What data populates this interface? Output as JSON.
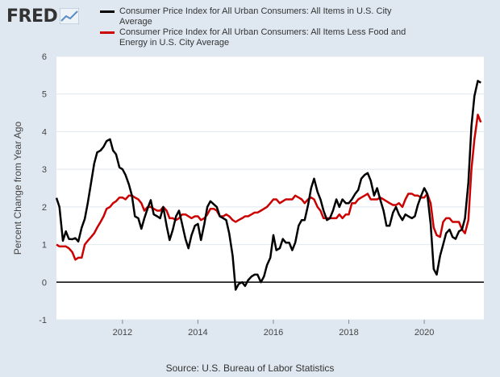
{
  "logo": {
    "text": "FRED"
  },
  "source": "Source: U.S. Bureau of Labor Statistics",
  "chart_data": {
    "type": "line",
    "ylabel": "Percent Change from Year Ago",
    "ylim": [
      -1,
      6
    ],
    "yticks": [
      -1,
      0,
      1,
      2,
      3,
      4,
      5,
      6
    ],
    "xlim": [
      2010.25,
      2021.58
    ],
    "xticks": [
      2012,
      2014,
      2016,
      2018,
      2020
    ],
    "grid": "horizontal",
    "legend_position": "top",
    "zero_line": true,
    "series": [
      {
        "name": "Consumer Price Index for All Urban Consumers: All Items in U.S. City Average",
        "color": "#000000",
        "points": [
          [
            2010.25,
            2.24
          ],
          [
            2010.33,
            2.0
          ],
          [
            2010.42,
            1.1
          ],
          [
            2010.5,
            1.35
          ],
          [
            2010.58,
            1.15
          ],
          [
            2010.67,
            1.14
          ],
          [
            2010.75,
            1.17
          ],
          [
            2010.83,
            1.08
          ],
          [
            2010.92,
            1.45
          ],
          [
            2011.0,
            1.68
          ],
          [
            2011.08,
            2.1
          ],
          [
            2011.17,
            2.65
          ],
          [
            2011.25,
            3.15
          ],
          [
            2011.33,
            3.45
          ],
          [
            2011.42,
            3.5
          ],
          [
            2011.5,
            3.6
          ],
          [
            2011.58,
            3.75
          ],
          [
            2011.67,
            3.8
          ],
          [
            2011.75,
            3.5
          ],
          [
            2011.83,
            3.4
          ],
          [
            2011.92,
            3.05
          ],
          [
            2012.0,
            3.0
          ],
          [
            2012.08,
            2.85
          ],
          [
            2012.17,
            2.6
          ],
          [
            2012.25,
            2.3
          ],
          [
            2012.33,
            1.75
          ],
          [
            2012.42,
            1.7
          ],
          [
            2012.5,
            1.42
          ],
          [
            2012.58,
            1.7
          ],
          [
            2012.67,
            1.97
          ],
          [
            2012.75,
            2.18
          ],
          [
            2012.83,
            1.8
          ],
          [
            2012.92,
            1.75
          ],
          [
            2013.0,
            1.7
          ],
          [
            2013.08,
            2.0
          ],
          [
            2013.17,
            1.5
          ],
          [
            2013.25,
            1.12
          ],
          [
            2013.33,
            1.38
          ],
          [
            2013.42,
            1.75
          ],
          [
            2013.5,
            1.9
          ],
          [
            2013.58,
            1.55
          ],
          [
            2013.67,
            1.15
          ],
          [
            2013.75,
            0.9
          ],
          [
            2013.83,
            1.25
          ],
          [
            2013.92,
            1.5
          ],
          [
            2014.0,
            1.55
          ],
          [
            2014.08,
            1.12
          ],
          [
            2014.17,
            1.55
          ],
          [
            2014.25,
            2.0
          ],
          [
            2014.33,
            2.15
          ],
          [
            2014.42,
            2.07
          ],
          [
            2014.5,
            2.0
          ],
          [
            2014.58,
            1.75
          ],
          [
            2014.67,
            1.7
          ],
          [
            2014.75,
            1.65
          ],
          [
            2014.83,
            1.3
          ],
          [
            2014.92,
            0.7
          ],
          [
            2015.0,
            -0.2
          ],
          [
            2015.08,
            -0.05
          ],
          [
            2015.17,
            0.0
          ],
          [
            2015.25,
            -0.1
          ],
          [
            2015.33,
            0.05
          ],
          [
            2015.42,
            0.15
          ],
          [
            2015.5,
            0.2
          ],
          [
            2015.58,
            0.2
          ],
          [
            2015.67,
            0.0
          ],
          [
            2015.75,
            0.15
          ],
          [
            2015.83,
            0.45
          ],
          [
            2015.92,
            0.65
          ],
          [
            2016.0,
            1.25
          ],
          [
            2016.08,
            0.85
          ],
          [
            2016.17,
            0.9
          ],
          [
            2016.25,
            1.15
          ],
          [
            2016.33,
            1.05
          ],
          [
            2016.42,
            1.05
          ],
          [
            2016.5,
            0.85
          ],
          [
            2016.58,
            1.05
          ],
          [
            2016.67,
            1.5
          ],
          [
            2016.75,
            1.65
          ],
          [
            2016.83,
            1.65
          ],
          [
            2016.92,
            2.05
          ],
          [
            2017.0,
            2.5
          ],
          [
            2017.08,
            2.75
          ],
          [
            2017.17,
            2.4
          ],
          [
            2017.25,
            2.2
          ],
          [
            2017.33,
            1.9
          ],
          [
            2017.42,
            1.65
          ],
          [
            2017.5,
            1.7
          ],
          [
            2017.58,
            1.9
          ],
          [
            2017.67,
            2.2
          ],
          [
            2017.75,
            2.0
          ],
          [
            2017.83,
            2.2
          ],
          [
            2017.92,
            2.1
          ],
          [
            2018.0,
            2.1
          ],
          [
            2018.08,
            2.2
          ],
          [
            2018.17,
            2.35
          ],
          [
            2018.25,
            2.45
          ],
          [
            2018.33,
            2.75
          ],
          [
            2018.42,
            2.85
          ],
          [
            2018.5,
            2.9
          ],
          [
            2018.58,
            2.7
          ],
          [
            2018.67,
            2.3
          ],
          [
            2018.75,
            2.5
          ],
          [
            2018.83,
            2.2
          ],
          [
            2018.92,
            1.9
          ],
          [
            2019.0,
            1.5
          ],
          [
            2019.08,
            1.5
          ],
          [
            2019.17,
            1.85
          ],
          [
            2019.25,
            2.0
          ],
          [
            2019.33,
            1.8
          ],
          [
            2019.42,
            1.65
          ],
          [
            2019.5,
            1.8
          ],
          [
            2019.58,
            1.75
          ],
          [
            2019.67,
            1.7
          ],
          [
            2019.75,
            1.75
          ],
          [
            2019.83,
            2.05
          ],
          [
            2019.92,
            2.3
          ],
          [
            2020.0,
            2.5
          ],
          [
            2020.08,
            2.35
          ],
          [
            2020.17,
            1.55
          ],
          [
            2020.25,
            0.35
          ],
          [
            2020.33,
            0.2
          ],
          [
            2020.42,
            0.7
          ],
          [
            2020.5,
            1.0
          ],
          [
            2020.58,
            1.3
          ],
          [
            2020.67,
            1.4
          ],
          [
            2020.75,
            1.2
          ],
          [
            2020.83,
            1.15
          ],
          [
            2020.92,
            1.35
          ],
          [
            2021.0,
            1.4
          ],
          [
            2021.08,
            1.7
          ],
          [
            2021.17,
            2.65
          ],
          [
            2021.25,
            4.15
          ],
          [
            2021.33,
            4.95
          ],
          [
            2021.42,
            5.35
          ],
          [
            2021.5,
            5.3
          ]
        ]
      },
      {
        "name": "Consumer Price Index for All Urban Consumers: All Items Less Food and Energy in U.S. City Average",
        "color": "#cc0000",
        "points": [
          [
            2010.25,
            1.0
          ],
          [
            2010.33,
            0.95
          ],
          [
            2010.42,
            0.95
          ],
          [
            2010.5,
            0.95
          ],
          [
            2010.58,
            0.9
          ],
          [
            2010.67,
            0.8
          ],
          [
            2010.75,
            0.6
          ],
          [
            2010.83,
            0.65
          ],
          [
            2010.92,
            0.65
          ],
          [
            2011.0,
            1.0
          ],
          [
            2011.08,
            1.1
          ],
          [
            2011.17,
            1.2
          ],
          [
            2011.25,
            1.3
          ],
          [
            2011.33,
            1.45
          ],
          [
            2011.42,
            1.6
          ],
          [
            2011.5,
            1.75
          ],
          [
            2011.58,
            1.95
          ],
          [
            2011.67,
            2.0
          ],
          [
            2011.75,
            2.1
          ],
          [
            2011.83,
            2.15
          ],
          [
            2011.92,
            2.25
          ],
          [
            2012.0,
            2.25
          ],
          [
            2012.08,
            2.2
          ],
          [
            2012.17,
            2.3
          ],
          [
            2012.25,
            2.3
          ],
          [
            2012.33,
            2.25
          ],
          [
            2012.42,
            2.2
          ],
          [
            2012.5,
            2.1
          ],
          [
            2012.58,
            1.9
          ],
          [
            2012.67,
            2.0
          ],
          [
            2012.75,
            2.0
          ],
          [
            2012.83,
            1.95
          ],
          [
            2012.92,
            1.9
          ],
          [
            2013.0,
            1.9
          ],
          [
            2013.08,
            2.0
          ],
          [
            2013.17,
            1.9
          ],
          [
            2013.25,
            1.7
          ],
          [
            2013.33,
            1.7
          ],
          [
            2013.42,
            1.65
          ],
          [
            2013.5,
            1.7
          ],
          [
            2013.58,
            1.8
          ],
          [
            2013.67,
            1.8
          ],
          [
            2013.75,
            1.75
          ],
          [
            2013.83,
            1.7
          ],
          [
            2013.92,
            1.75
          ],
          [
            2014.0,
            1.75
          ],
          [
            2014.08,
            1.65
          ],
          [
            2014.17,
            1.7
          ],
          [
            2014.25,
            1.8
          ],
          [
            2014.33,
            1.95
          ],
          [
            2014.42,
            1.95
          ],
          [
            2014.5,
            1.9
          ],
          [
            2014.58,
            1.75
          ],
          [
            2014.67,
            1.75
          ],
          [
            2014.75,
            1.8
          ],
          [
            2014.83,
            1.75
          ],
          [
            2014.92,
            1.65
          ],
          [
            2015.0,
            1.6
          ],
          [
            2015.08,
            1.65
          ],
          [
            2015.17,
            1.7
          ],
          [
            2015.25,
            1.75
          ],
          [
            2015.33,
            1.75
          ],
          [
            2015.42,
            1.8
          ],
          [
            2015.5,
            1.85
          ],
          [
            2015.58,
            1.85
          ],
          [
            2015.67,
            1.9
          ],
          [
            2015.75,
            1.95
          ],
          [
            2015.83,
            2.0
          ],
          [
            2015.92,
            2.1
          ],
          [
            2016.0,
            2.2
          ],
          [
            2016.08,
            2.2
          ],
          [
            2016.17,
            2.1
          ],
          [
            2016.25,
            2.15
          ],
          [
            2016.33,
            2.2
          ],
          [
            2016.42,
            2.2
          ],
          [
            2016.5,
            2.2
          ],
          [
            2016.58,
            2.3
          ],
          [
            2016.67,
            2.25
          ],
          [
            2016.75,
            2.2
          ],
          [
            2016.83,
            2.1
          ],
          [
            2016.92,
            2.2
          ],
          [
            2017.0,
            2.25
          ],
          [
            2017.08,
            2.2
          ],
          [
            2017.17,
            2.0
          ],
          [
            2017.25,
            1.9
          ],
          [
            2017.33,
            1.7
          ],
          [
            2017.42,
            1.7
          ],
          [
            2017.5,
            1.7
          ],
          [
            2017.58,
            1.7
          ],
          [
            2017.67,
            1.7
          ],
          [
            2017.75,
            1.8
          ],
          [
            2017.83,
            1.7
          ],
          [
            2017.92,
            1.8
          ],
          [
            2018.0,
            1.8
          ],
          [
            2018.08,
            2.1
          ],
          [
            2018.17,
            2.1
          ],
          [
            2018.25,
            2.2
          ],
          [
            2018.33,
            2.25
          ],
          [
            2018.42,
            2.3
          ],
          [
            2018.5,
            2.35
          ],
          [
            2018.58,
            2.2
          ],
          [
            2018.67,
            2.2
          ],
          [
            2018.75,
            2.2
          ],
          [
            2018.83,
            2.25
          ],
          [
            2018.92,
            2.2
          ],
          [
            2019.0,
            2.15
          ],
          [
            2019.08,
            2.1
          ],
          [
            2019.17,
            2.05
          ],
          [
            2019.25,
            2.05
          ],
          [
            2019.33,
            2.1
          ],
          [
            2019.42,
            2.0
          ],
          [
            2019.5,
            2.2
          ],
          [
            2019.58,
            2.35
          ],
          [
            2019.67,
            2.35
          ],
          [
            2019.75,
            2.3
          ],
          [
            2019.83,
            2.3
          ],
          [
            2019.92,
            2.25
          ],
          [
            2020.0,
            2.25
          ],
          [
            2020.08,
            2.35
          ],
          [
            2020.17,
            2.1
          ],
          [
            2020.25,
            1.45
          ],
          [
            2020.33,
            1.25
          ],
          [
            2020.42,
            1.2
          ],
          [
            2020.5,
            1.6
          ],
          [
            2020.58,
            1.7
          ],
          [
            2020.67,
            1.7
          ],
          [
            2020.75,
            1.6
          ],
          [
            2020.83,
            1.6
          ],
          [
            2020.92,
            1.6
          ],
          [
            2021.0,
            1.4
          ],
          [
            2021.08,
            1.3
          ],
          [
            2021.17,
            1.65
          ],
          [
            2021.25,
            3.0
          ],
          [
            2021.33,
            3.8
          ],
          [
            2021.42,
            4.45
          ],
          [
            2021.5,
            4.25
          ]
        ]
      }
    ]
  }
}
